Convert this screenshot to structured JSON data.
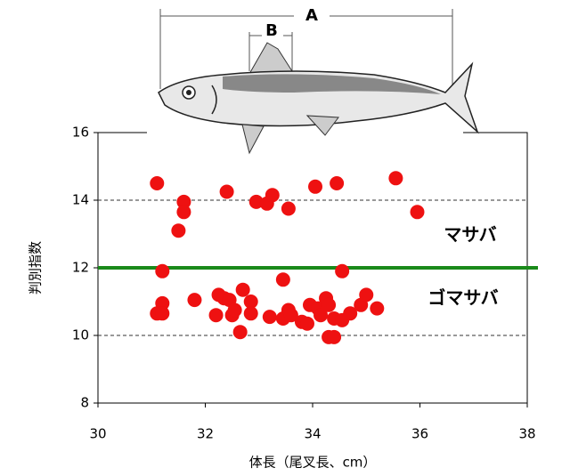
{
  "chart_data": {
    "type": "scatter",
    "xlabel": "体長（尾叉長、cm）",
    "ylabel": "判別指数",
    "xlim": [
      30,
      38
    ],
    "xticks": [
      30,
      32,
      34,
      36,
      38
    ],
    "ylim": [
      8,
      16
    ],
    "yticks": [
      8,
      10,
      12,
      14,
      16
    ],
    "grid": true,
    "color": "#ee1111",
    "threshold": {
      "value": 12,
      "color": "#1a8a1a"
    },
    "annotations": [
      "マサバ",
      "ゴマサバ",
      "A",
      "B"
    ],
    "x": [
      31.1,
      31.6,
      31.6,
      31.5,
      31.2,
      31.2,
      31.1,
      31.2,
      31.8,
      32.4,
      32.2,
      32.25,
      32.35,
      32.45,
      32.5,
      32.55,
      32.65,
      32.7,
      32.85,
      32.85,
      32.95,
      33.15,
      33.25,
      33.2,
      33.45,
      33.45,
      33.55,
      33.55,
      33.6,
      33.8,
      33.9,
      33.95,
      34.05,
      34.1,
      34.15,
      34.25,
      34.3,
      34.3,
      34.4,
      34.4,
      34.45,
      34.55,
      34.55,
      34.7,
      34.9,
      35.0,
      35.2,
      35.55,
      35.95
    ],
    "values": [
      14.5,
      13.95,
      13.65,
      13.1,
      11.9,
      10.95,
      10.65,
      10.65,
      11.05,
      14.25,
      10.6,
      11.2,
      11.1,
      11.05,
      10.6,
      10.75,
      10.1,
      11.35,
      11.0,
      10.65,
      13.95,
      13.9,
      14.15,
      10.55,
      11.65,
      10.5,
      10.75,
      13.75,
      10.6,
      10.4,
      10.35,
      10.9,
      14.4,
      10.8,
      10.6,
      11.1,
      10.9,
      9.95,
      9.95,
      10.5,
      14.5,
      11.9,
      10.45,
      10.65,
      10.9,
      11.2,
      10.8,
      14.65,
      13.65
    ]
  }
}
